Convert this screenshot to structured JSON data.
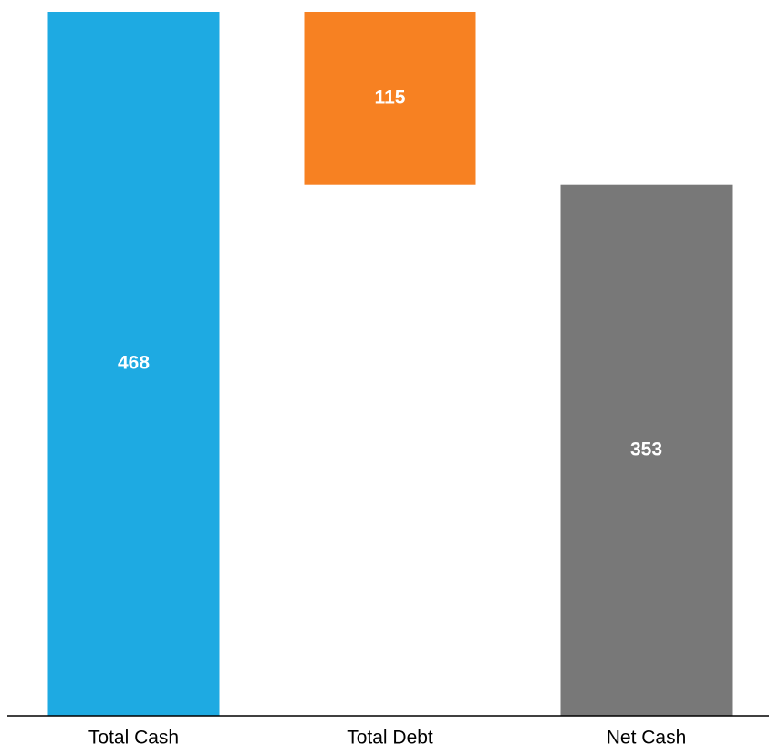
{
  "chart_data": {
    "type": "waterfall",
    "categories": [
      "Total Cash",
      "Total Debt",
      "Net Cash"
    ],
    "values": [
      468,
      -115,
      353
    ],
    "value_labels": [
      "468",
      "115",
      "353"
    ],
    "colors": [
      "#1eaae2",
      "#f78122",
      "#787878"
    ]
  }
}
